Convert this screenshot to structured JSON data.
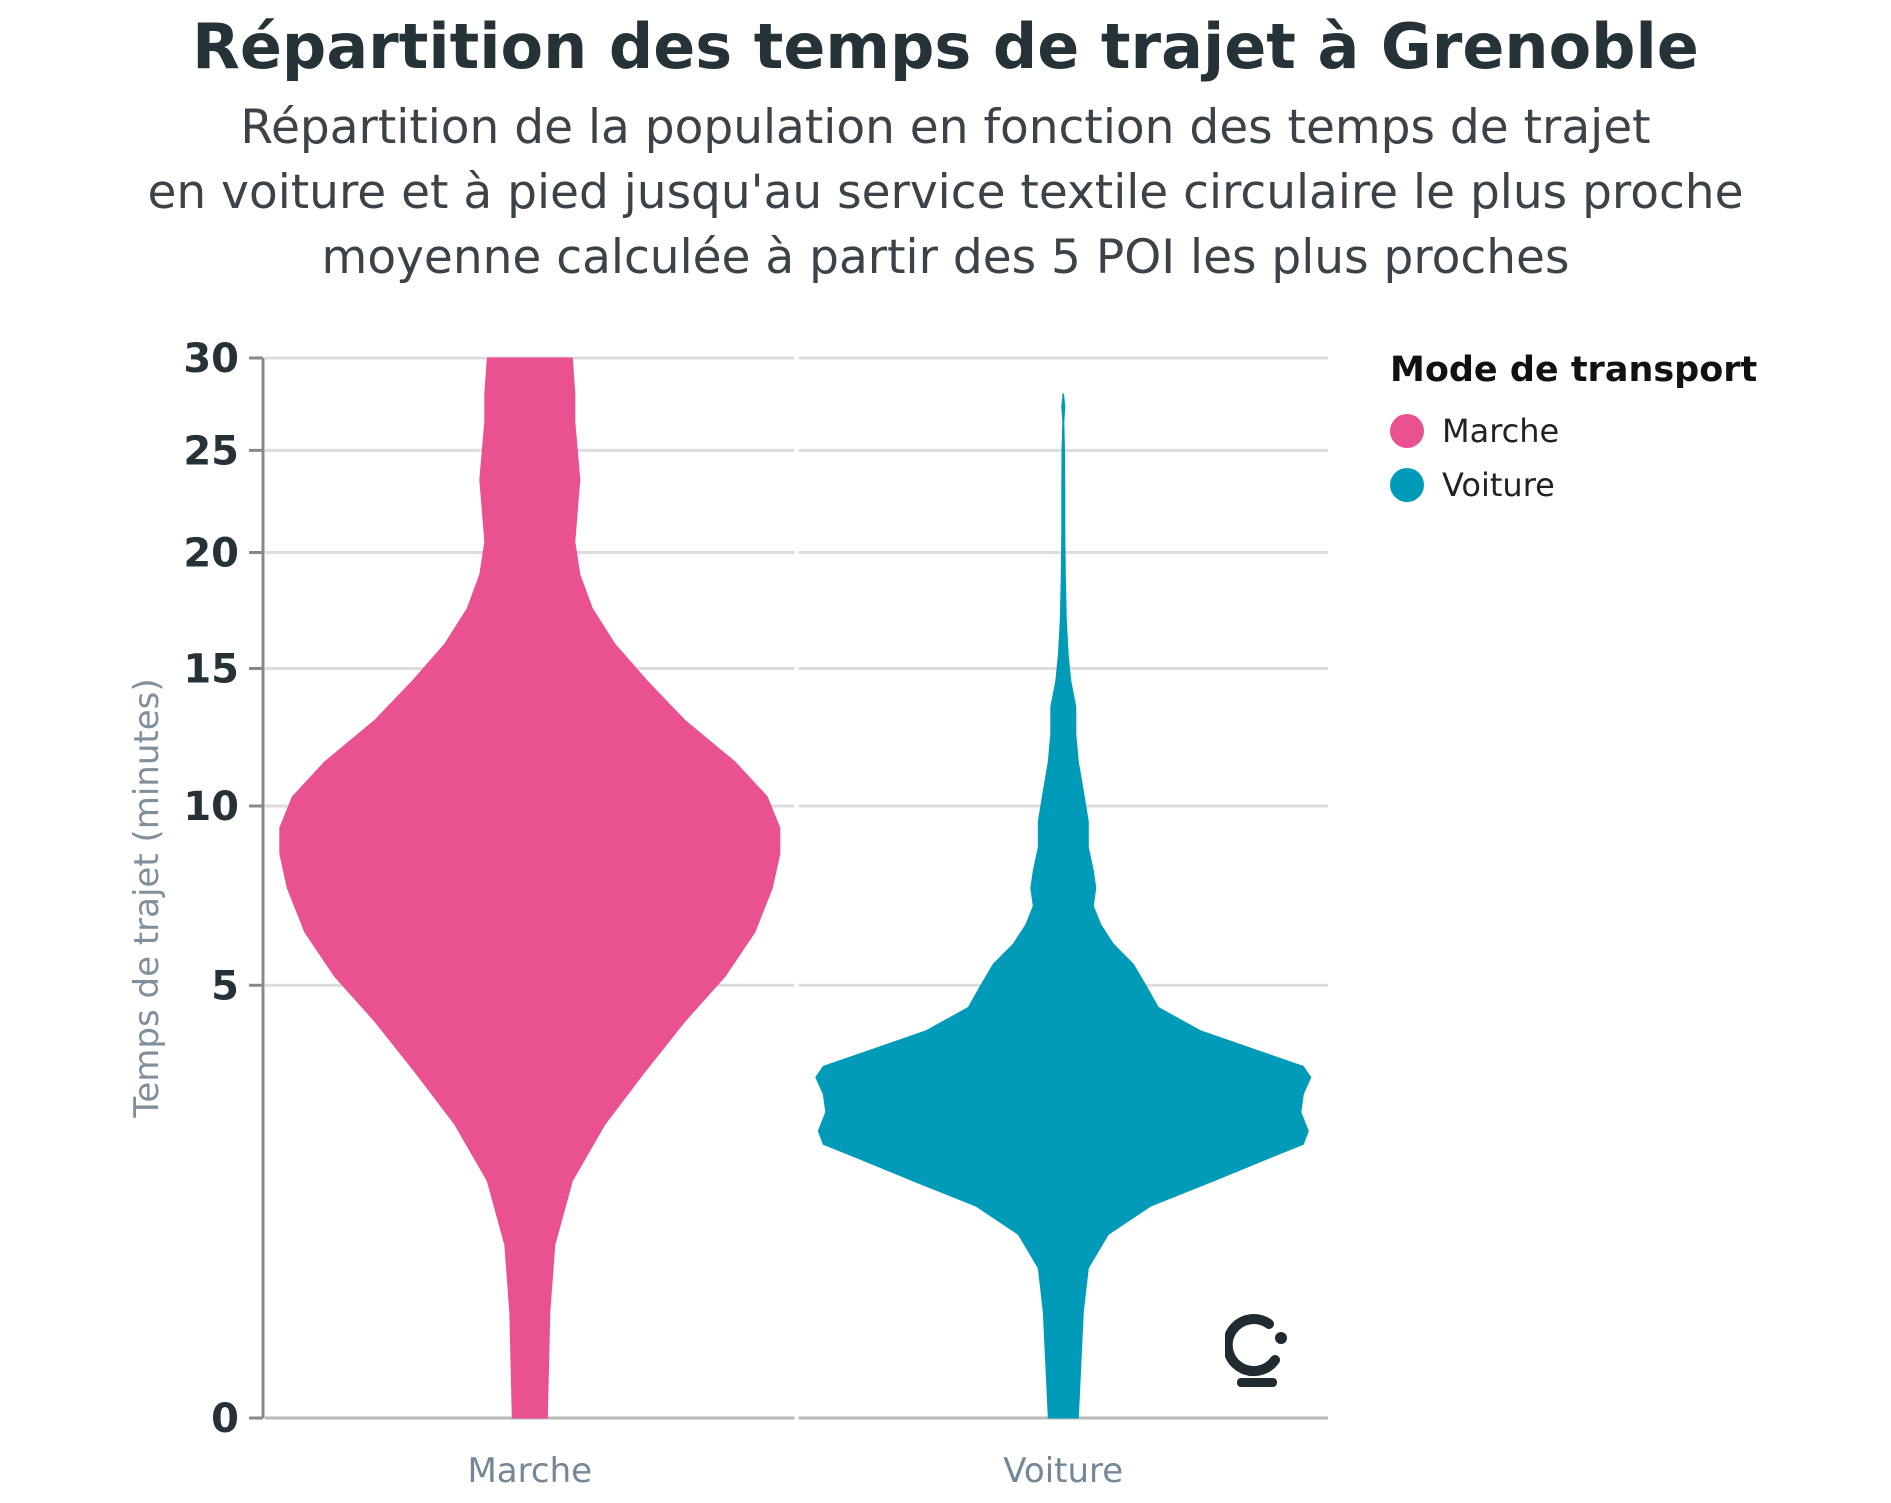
{
  "title": "Répartition des temps de trajet à Grenoble",
  "subtitle_lines": [
    "Répartition de la population en fonction des temps de trajet",
    "en voiture et à pied jusqu'au service textile circulaire le plus proche",
    "moyenne calculée à partir des 5 POI les plus proches"
  ],
  "legend": {
    "title": "Mode de transport",
    "items": [
      {
        "label": "Marche",
        "color": "#e95191"
      },
      {
        "label": "Voiture",
        "color": "#009bb9"
      }
    ]
  },
  "chart_data": {
    "type": "violin",
    "ylabel": "Temps de trajet (minutes)",
    "xlabel": "",
    "y_scale": "sqrt",
    "ylim": [
      0,
      30
    ],
    "yticks": [
      0,
      5,
      10,
      15,
      20,
      25,
      30
    ],
    "categories": [
      "Marche",
      "Voiture"
    ],
    "grid": true,
    "legend_position": "right",
    "series": [
      {
        "name": "Marche",
        "color": "#e95191",
        "density": [
          {
            "y": 0,
            "w": 0.07
          },
          {
            "y": 0.3,
            "w": 0.08
          },
          {
            "y": 0.8,
            "w": 0.1
          },
          {
            "y": 1.5,
            "w": 0.17
          },
          {
            "y": 2.3,
            "w": 0.3
          },
          {
            "y": 3.2,
            "w": 0.46
          },
          {
            "y": 4.2,
            "w": 0.62
          },
          {
            "y": 5.2,
            "w": 0.78
          },
          {
            "y": 6.3,
            "w": 0.9
          },
          {
            "y": 7.5,
            "w": 0.97
          },
          {
            "y": 8.5,
            "w": 1.0
          },
          {
            "y": 9.3,
            "w": 1.0
          },
          {
            "y": 10.3,
            "w": 0.95
          },
          {
            "y": 11.5,
            "w": 0.82
          },
          {
            "y": 13,
            "w": 0.62
          },
          {
            "y": 14.5,
            "w": 0.47
          },
          {
            "y": 16,
            "w": 0.34
          },
          {
            "y": 17.5,
            "w": 0.25
          },
          {
            "y": 19,
            "w": 0.2
          },
          {
            "y": 20.5,
            "w": 0.18
          },
          {
            "y": 22,
            "w": 0.19
          },
          {
            "y": 23.5,
            "w": 0.2
          },
          {
            "y": 25,
            "w": 0.19
          },
          {
            "y": 26.5,
            "w": 0.18
          },
          {
            "y": 28,
            "w": 0.18
          },
          {
            "y": 30,
            "w": 0.17
          }
        ]
      },
      {
        "name": "Voiture",
        "color": "#009bb9",
        "density": [
          {
            "y": 0,
            "w": 0.06
          },
          {
            "y": 0.3,
            "w": 0.08
          },
          {
            "y": 0.6,
            "w": 0.1
          },
          {
            "y": 0.9,
            "w": 0.18
          },
          {
            "y": 1.2,
            "w": 0.35
          },
          {
            "y": 1.5,
            "w": 0.6
          },
          {
            "y": 1.8,
            "w": 0.82
          },
          {
            "y": 2.0,
            "w": 0.96
          },
          {
            "y": 2.2,
            "w": 0.98
          },
          {
            "y": 2.5,
            "w": 0.95
          },
          {
            "y": 2.8,
            "w": 0.96
          },
          {
            "y": 3.1,
            "w": 0.99
          },
          {
            "y": 3.3,
            "w": 0.96
          },
          {
            "y": 3.6,
            "w": 0.78
          },
          {
            "y": 4.0,
            "w": 0.55
          },
          {
            "y": 4.5,
            "w": 0.38
          },
          {
            "y": 5.0,
            "w": 0.33
          },
          {
            "y": 5.5,
            "w": 0.28
          },
          {
            "y": 6.0,
            "w": 0.2
          },
          {
            "y": 6.5,
            "w": 0.15
          },
          {
            "y": 7.0,
            "w": 0.12
          },
          {
            "y": 7.5,
            "w": 0.13
          },
          {
            "y": 8.0,
            "w": 0.12
          },
          {
            "y": 8.7,
            "w": 0.1
          },
          {
            "y": 9.5,
            "w": 0.1
          },
          {
            "y": 10.5,
            "w": 0.08
          },
          {
            "y": 11.5,
            "w": 0.06
          },
          {
            "y": 12.5,
            "w": 0.05
          },
          {
            "y": 13.5,
            "w": 0.05
          },
          {
            "y": 14.5,
            "w": 0.03
          },
          {
            "y": 15.5,
            "w": 0.02
          },
          {
            "y": 17,
            "w": 0.012
          },
          {
            "y": 19,
            "w": 0.008
          },
          {
            "y": 21,
            "w": 0.006
          },
          {
            "y": 23,
            "w": 0.006
          },
          {
            "y": 25,
            "w": 0.005
          },
          {
            "y": 26.5,
            "w": 0.002
          },
          {
            "y": 27.3,
            "w": 0.006
          },
          {
            "y": 28,
            "w": 0.001
          }
        ]
      }
    ]
  }
}
